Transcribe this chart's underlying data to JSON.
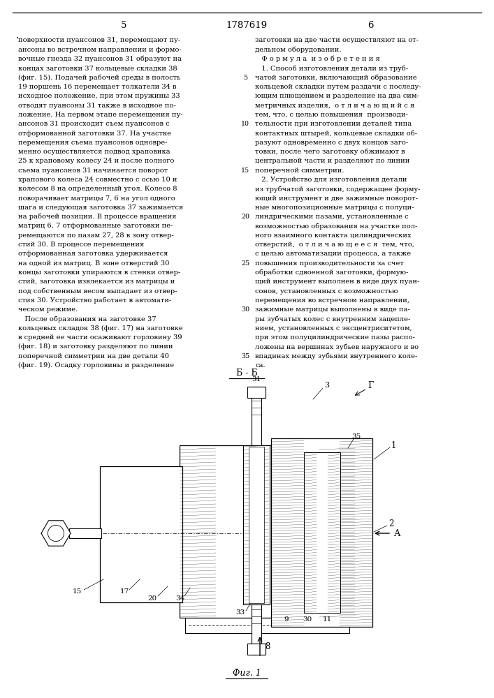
{
  "bg_color": "#ffffff",
  "text_color": "#000000",
  "page_num_left": "5",
  "patent_num": "1787619",
  "page_num_right": "6",
  "section_label": "Б - Б",
  "figure_label": "Фиг. 1",
  "left_col_lines": [
    "поверхности пуансонов 31, перемещают пу-",
    "ансоны во встречном направлении и формо-",
    "вочные гнезда 32 пуансонов 31 образуют на",
    "концах заготовки 37 кольцевые складки 38",
    "(фиг. 15). Подачей рабочей среды в полость",
    "19 поршень 16 перемещает толкатели 34 в",
    "исходное положение, при этом пружины 33",
    "отводят пуансоны 31 также в исходное по-",
    "ложение. На первом этапе перемещения пу-",
    "ансонов 31 происходит съем пуансонов с",
    "отформованной заготовки 37. На участке",
    "перемещения съема пуансонов одновре-",
    "менно осуществляется подвод храповика",
    "25 к храповому колесу 24 и после полного",
    "съема пуансонов 31 начинается поворот",
    "храпового колеса 24 совместно с осью 10 и",
    "колесом 8 на определенный угол. Колесо 8",
    "поворачивает матрицы 7, 6 на угол одного",
    "шага и следующая заготовка 37 зажимается",
    "на рабочей позиции. В процессе вращения",
    "матриц 6, 7 отформованные заготовки пе-",
    "ремещаются по пазам 27, 28 в зону отвер-",
    "стий 30. В процессе перемещения",
    "отформованная заготовка удерживается",
    "на одной из матриц. В зоне отверстий 30",
    "концы заготовки упираются в стенки отвер-",
    "стий, заготовка извлекается из матрицы и",
    "под собственным весом выпадает из отвер-",
    "стия 30. Устройство работает в автомати-",
    "ческом режиме.",
    "   После образования на заготовке 37",
    "кольцевых складок 38 (фиг. 17) на заготовке",
    "в средней ее части осаживают горловину 39",
    "(фиг. 18) и заготовку разделяют по линии",
    "поперечной симметрии на две детали 40",
    "(фиг. 19). Осадку горловины и разделение"
  ],
  "right_col_lines": [
    "заготовки на две части осуществляют на от-",
    "дельном оборудовании.",
    "   Ф о р м у л а  и з о б р е т е н и я",
    "   1. Способ изготовления детали из труб-",
    "чатой заготовки, включающий образование",
    "кольцевой складки путем раздачи с последу-",
    "ющим плющением и разделение на два сим-",
    "метричных изделия,  о т л и ч а ю щ и й с я",
    "тем, что, с целью повышения  производи-",
    "тельности при изготовлении деталей типа",
    "контактных штырей, кольцевые складки об-",
    "разуют одновременно с двух концов заго-",
    "товки, после чего заготовку обжимают в",
    "центральной части и разделяют по линии",
    "поперечной симметрии.",
    "   2. Устройство для изготовления детали",
    "из трубчатой заготовки, содержащее форму-",
    "ющий инструмент и две зажимные поворот-",
    "ные многопозиционные матрицы с полуци-",
    "линдрическими пазами, установленные с",
    "возможностью образования на участке пол-",
    "ного взаимного контакта цилиндрических",
    "отверстий,  о т л и ч а ю щ е е с я  тем, что,",
    "с целью автоматизации процесса, а также",
    "повышения производительности за счет",
    "обработки сдвоенной заготовки, формую-",
    "щий инструмент выполнен в виде двух пуан-",
    "сонов, установленных с возможностью",
    "перемещения во встречном направлении,",
    "зажимные матрицы выполнены в виде па-",
    "ры зубчатых колес с внутренним зацепле-",
    "нием, установленных с эксцентриситетом,",
    "при этом полуцилиндрические пазы распо-",
    "ложены на вершинах зубьев наружного и во",
    "впадинах между зубьями внутреннего коле-",
    "са."
  ],
  "line_num_indices": {
    "5": 4,
    "10": 9,
    "15": 14,
    "20": 19,
    "25": 24,
    "30": 29,
    "35": 34
  }
}
